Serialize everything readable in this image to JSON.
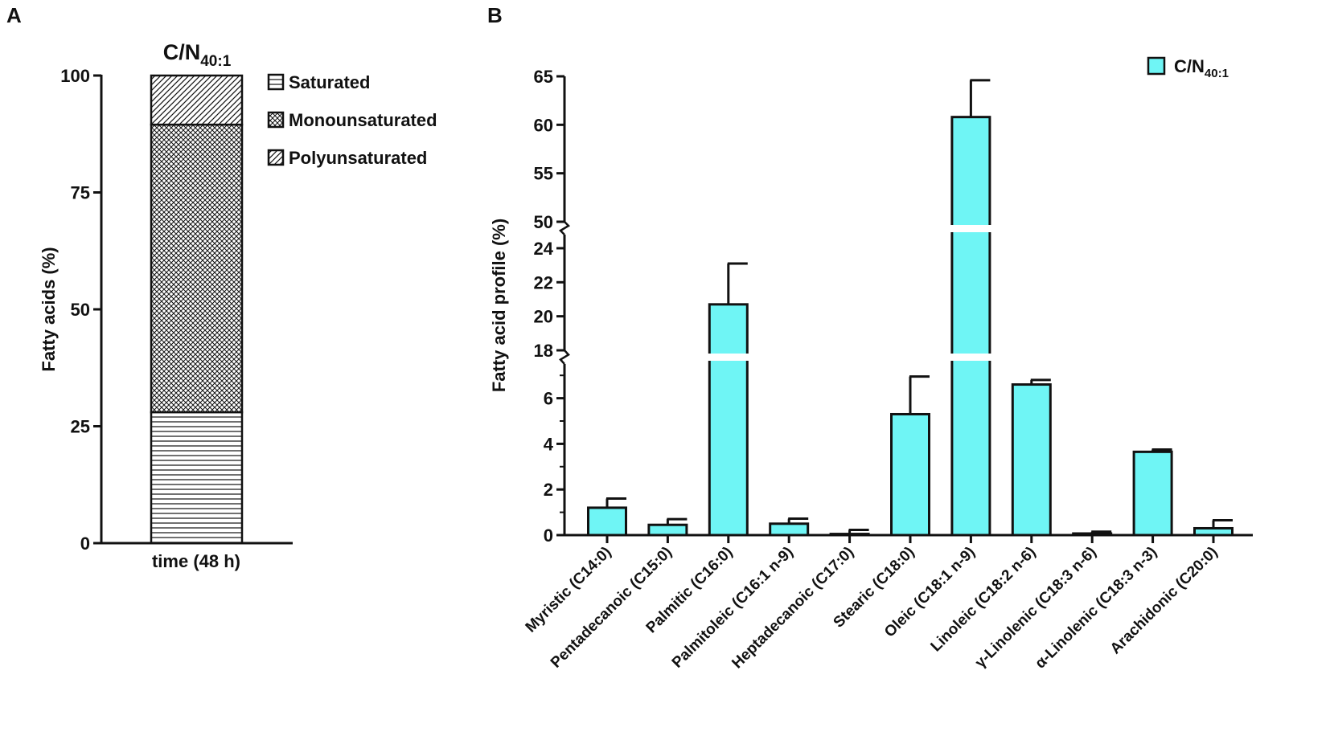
{
  "colors": {
    "bar_fill": "#6ff5f5",
    "ink": "#111111"
  },
  "chart_data": [
    {
      "panel": "A",
      "type": "bar",
      "stacked": true,
      "title": "C/N",
      "title_subscript": "40:1",
      "categories": [
        "time (48 h)"
      ],
      "xlabel": "",
      "ylabel": "Fatty acids (%)",
      "ylim": [
        0,
        100
      ],
      "yticks": [
        "0",
        "25",
        "50",
        "75",
        "100"
      ],
      "series": [
        {
          "name": "Saturated",
          "pattern": "horizontal-lines",
          "values": [
            28
          ]
        },
        {
          "name": "Monounsaturated",
          "pattern": "crosshatch",
          "values": [
            61.5
          ]
        },
        {
          "name": "Polyunsaturated",
          "pattern": "diagonal-lines",
          "values": [
            10.5
          ]
        }
      ],
      "legend_position": "top-right"
    },
    {
      "panel": "B",
      "type": "bar",
      "title": "",
      "xlabel": "",
      "ylabel": "Fatty acid profile (%)",
      "legend_name": "C/N",
      "legend_subscript": "40:1",
      "legend_position": "top-right",
      "axis_breaks": [
        [
          7.5,
          18
        ],
        [
          24.8,
          50
        ]
      ],
      "ylim": [
        0,
        65
      ],
      "yticks": [
        "0",
        "2",
        "4",
        "6",
        "18",
        "20",
        "22",
        "24",
        "50",
        "55",
        "60",
        "65"
      ],
      "categories": [
        "Myristic (C14:0)",
        "Pentadecanoic (C15:0)",
        "Palmitic (C16:0)",
        "Palmitoleic (C16:1 n-9)",
        "Heptadecanoic (C17:0)",
        "Stearic (C18:0)",
        "Oleic (C18:1 n-9)",
        "Linoleic (C18:2 n-6)",
        "γ-Linolenic (C18:3 n-6)",
        "α-Linolenic (C18:3 n-3)",
        "Arachidonic (C20:0)"
      ],
      "values": [
        1.2,
        0.45,
        20.7,
        0.5,
        0.05,
        5.3,
        60.8,
        6.6,
        0.07,
        3.65,
        0.3
      ],
      "errors": [
        0.4,
        0.25,
        2.4,
        0.22,
        0.18,
        1.65,
        3.8,
        0.2,
        0.08,
        0.1,
        0.35
      ]
    }
  ],
  "panels": {
    "a_label": "A",
    "b_label": "B"
  }
}
